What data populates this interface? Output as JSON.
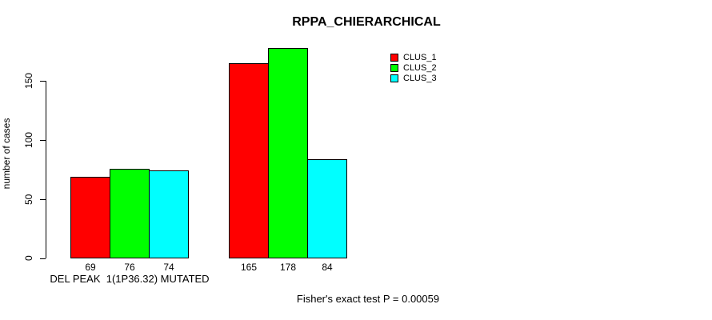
{
  "title": "RPPA_CHIERARCHICAL",
  "y_axis": {
    "label": "number of cases",
    "ticks": [
      0,
      50,
      100,
      150
    ]
  },
  "legend": {
    "items": [
      {
        "label": "CLUS_1",
        "color": "#FF0000"
      },
      {
        "label": "CLUS_2",
        "color": "#00FF00"
      },
      {
        "label": "CLUS_3",
        "color": "#00FFFF"
      }
    ]
  },
  "footer": "Fisher's exact test P = 0.00059",
  "chart_data": {
    "type": "bar",
    "title": "RPPA_CHIERARCHICAL",
    "xlabel": "",
    "ylabel": "number of cases",
    "categories": [
      "DEL PEAK  1(1P36.32) MUTATED",
      ""
    ],
    "series": [
      {
        "name": "CLUS_1",
        "color": "#FF0000",
        "values": [
          69,
          165
        ]
      },
      {
        "name": "CLUS_2",
        "color": "#00FF00",
        "values": [
          76,
          178
        ]
      },
      {
        "name": "CLUS_3",
        "color": "#00FFFF",
        "values": [
          74,
          84
        ]
      }
    ],
    "bar_value_labels": [
      [
        69,
        76,
        74
      ],
      [
        165,
        178,
        84
      ]
    ],
    "ylim": [
      0,
      185
    ],
    "yticks": [
      0,
      50,
      100,
      150
    ],
    "grid": false,
    "legend_position": "top-right",
    "annotation": "Fisher's exact test P = 0.00059"
  }
}
